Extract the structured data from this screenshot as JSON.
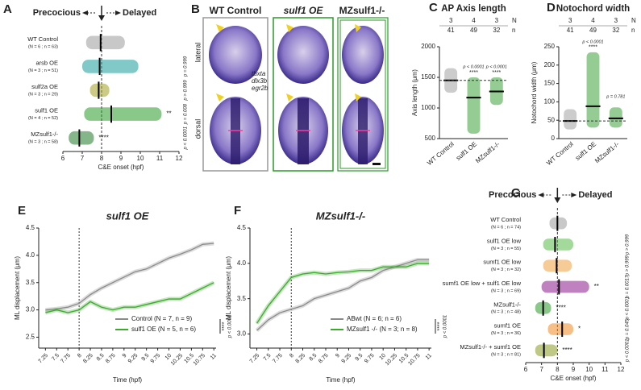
{
  "panels": [
    "A",
    "B",
    "C",
    "D",
    "E",
    "F",
    "G"
  ],
  "panel_b": {
    "titles": [
      "WT Control",
      "sulf1 OE",
      "MZsulf1-/-"
    ],
    "views": [
      "lateral",
      "dorsal"
    ],
    "markers": [
      "tbxta",
      "dlx3b",
      "egr2b"
    ]
  },
  "chart_data": [
    {
      "type": "strip",
      "orientation": "horizontal",
      "left_label": "Precocious",
      "right_label": "Delayed",
      "left_color": "#1e9a5a",
      "right_color": "#e020d0",
      "categories": [
        "WT Control",
        "arsb OE",
        "sulf2a OE",
        "sulf1 OE",
        "MZsulf1-/-"
      ],
      "sublabels": [
        "(N = 6 ; n = 63)",
        "(N = 3 ; n = 51)",
        "(N = 3 ; n = 29)",
        "(N = 4 ; n = 52)",
        "(N = 3 ; n = 58)"
      ],
      "colors": [
        "#9a9a9a",
        "#1a9a9a",
        "#a0a020",
        "#2a9a2a",
        "#1f7a2a"
      ],
      "values": [
        7.95,
        7.9,
        7.85,
        8.5,
        6.85
      ],
      "spread": [
        [
          7.2,
          9.2
        ],
        [
          7.0,
          9.9
        ],
        [
          7.4,
          8.4
        ],
        [
          7.1,
          11.1
        ],
        [
          6.3,
          7.6
        ]
      ],
      "pvalues": [
        null,
        "p = 0.999",
        "p > 0.999",
        "p = 0.008",
        "p < 0.0001"
      ],
      "stars": [
        null,
        null,
        null,
        "**",
        "****"
      ],
      "ref_line": 8,
      "xlim": [
        6,
        12
      ],
      "xticks": [
        6,
        7,
        8,
        9,
        10,
        11,
        12
      ],
      "xlabel": "C&E onset (hpf)"
    },
    {
      "type": "strip",
      "orientation": "vertical",
      "title": "AP Axis length",
      "N": [
        "3",
        "4",
        "3"
      ],
      "N_label": "N",
      "n": [
        "41",
        "49",
        "32"
      ],
      "n_label": "n",
      "categories": [
        "WT Control",
        "sulf1 OE",
        "MZsulf1-/-"
      ],
      "colors": [
        "#9a9a9a",
        "#2a9a2a",
        "#2a9a2a"
      ],
      "values": [
        1450,
        1170,
        1270
      ],
      "spread": [
        [
          1250,
          1650
        ],
        [
          580,
          1500
        ],
        [
          1050,
          1500
        ]
      ],
      "pvalues": [
        null,
        "p < 0.0001",
        "p < 0.0001"
      ],
      "stars": [
        null,
        "****",
        "****"
      ],
      "ref_line": 1450,
      "ylim": [
        500,
        2000
      ],
      "yticks": [
        500,
        1000,
        1500,
        2000
      ],
      "ylabel": "Axis length (μm)"
    },
    {
      "type": "strip",
      "orientation": "vertical",
      "title": "Notochord width",
      "N": [
        "3",
        "4",
        "3"
      ],
      "N_label": "N",
      "n": [
        "41",
        "49",
        "32"
      ],
      "n_label": "n",
      "categories": [
        "WT Control",
        "sulf1 OE",
        "MZsulf1-/-"
      ],
      "colors": [
        "#9a9a9a",
        "#2a9a2a",
        "#2a9a2a"
      ],
      "values": [
        48,
        88,
        55
      ],
      "spread": [
        [
          25,
          80
        ],
        [
          30,
          235
        ],
        [
          30,
          85
        ]
      ],
      "pvalues": [
        null,
        "p < 0.0001",
        "p = 0.781"
      ],
      "stars": [
        null,
        "****",
        null
      ],
      "ref_line": 48,
      "ylim": [
        0,
        250
      ],
      "yticks": [
        0,
        50,
        100,
        150,
        200,
        250
      ],
      "ylabel": "Notochord width (μm)"
    },
    {
      "type": "line",
      "title": "sulf1 OE",
      "title_color": "#1e9a3a",
      "x": [
        7.25,
        7.5,
        7.75,
        8,
        8.25,
        8.5,
        8.75,
        9,
        9.25,
        9.5,
        9.75,
        10,
        10.25,
        10.5,
        10.75,
        11
      ],
      "series": [
        {
          "name": "Control (N = 7, n = 9)",
          "color": "#8a8a8a",
          "values": [
            3.0,
            3.02,
            3.05,
            3.12,
            3.28,
            3.4,
            3.5,
            3.6,
            3.7,
            3.75,
            3.85,
            3.95,
            4.02,
            4.1,
            4.2,
            4.22
          ]
        },
        {
          "name": "sulf1 OE (N = 5, n = 6)",
          "color": "#3aaa2a",
          "values": [
            2.95,
            3.0,
            2.95,
            3.0,
            3.15,
            3.05,
            3.0,
            3.05,
            3.05,
            3.1,
            3.15,
            3.2,
            3.2,
            3.3,
            3.4,
            3.5
          ]
        }
      ],
      "stars": "****",
      "pvalue": "p < 0.0001",
      "ref_line": 8,
      "xlim": [
        7.1,
        11.05
      ],
      "xticks": [
        7.25,
        7.5,
        7.75,
        8,
        8.25,
        8.5,
        8.75,
        9,
        9.25,
        9.5,
        9.75,
        10,
        10.25,
        10.5,
        10.75,
        11
      ],
      "ylim": [
        2.3,
        4.5
      ],
      "yticks": [
        2.5,
        {
          "value": 3,
          "label": "3.0"
        },
        3.5,
        {
          "value": 4,
          "label": "4.0"
        },
        4.5
      ],
      "xlabel": "Time (hpf)",
      "ylabel": "ML displacement (μm)"
    },
    {
      "type": "line",
      "title": "MZsulf1-/-",
      "title_color": "#1e9a3a",
      "x": [
        7.25,
        7.5,
        7.75,
        8,
        8.25,
        8.5,
        8.75,
        9,
        9.25,
        9.5,
        9.75,
        10,
        10.25,
        10.5,
        10.75,
        11
      ],
      "series": [
        {
          "name": "ABwt (N = 6; n = 6)",
          "color": "#8a8a8a",
          "values": [
            3.05,
            3.2,
            3.3,
            3.35,
            3.4,
            3.5,
            3.55,
            3.6,
            3.65,
            3.75,
            3.8,
            3.9,
            3.95,
            4.0,
            4.05,
            4.05
          ]
        },
        {
          "name": "MZsulf1 -/- (N = 3; n = 8)",
          "color": "#3aaa2a",
          "values": [
            3.15,
            3.4,
            3.6,
            3.8,
            3.85,
            3.87,
            3.85,
            3.87,
            3.88,
            3.9,
            3.9,
            3.95,
            3.95,
            3.95,
            4.0,
            4.0
          ]
        }
      ],
      "stars": "****",
      "pvalue": "p < 0.0001",
      "ref_line": 8,
      "xlim": [
        7.1,
        11.05
      ],
      "xticks": [
        7.25,
        7.5,
        7.75,
        8,
        8.25,
        8.5,
        8.75,
        9,
        9.25,
        9.5,
        9.75,
        10,
        10.25,
        10.5,
        10.75,
        11
      ],
      "ylim": [
        2.8,
        4.5
      ],
      "yticks": [
        {
          "value": 3,
          "label": "3.0"
        },
        3.5,
        {
          "value": 4,
          "label": "4.0"
        },
        4.5
      ],
      "xlabel": "Time (hpf)",
      "ylabel": "ML displacement (μm)"
    },
    {
      "type": "strip",
      "orientation": "horizontal",
      "left_label": "Precocious",
      "right_label": "Delayed",
      "left_color": "#1e9a5a",
      "right_color": "#e020d0",
      "categories": [
        "WT Control",
        "sulf1 OE low",
        "sumf1 OE low",
        "sumf1 OE low + sulf1 OE low",
        "MZsulf1-/-",
        "sumf1 OE",
        "MZsulf1-/- + sumf1 OE"
      ],
      "sublabels": [
        "(N = 6 ; n = 74)",
        "(N = 3 ; n = 55)",
        "(N = 3 ; n = 32)",
        "(N = 3 ; n = 69)",
        "(N = 3 ; n = 48)",
        "(N = 3 ; n = 36)",
        "(N = 3 ; n = 81)"
      ],
      "colors": [
        "#9a9a9a",
        "#5aba4a",
        "#f0a040",
        "#8a1a8a",
        "#2a9a2a",
        "#f08a20",
        "#8a9a20"
      ],
      "values": [
        8.0,
        7.85,
        7.95,
        8.1,
        7.1,
        8.3,
        7.15
      ],
      "spread": [
        [
          7.5,
          8.6
        ],
        [
          7.1,
          9.0
        ],
        [
          7.1,
          8.9
        ],
        [
          7.0,
          10.0
        ],
        [
          6.6,
          7.6
        ],
        [
          7.4,
          9.0
        ],
        [
          6.6,
          8.0
        ]
      ],
      "pvalues": [
        null,
        "p > 0.999",
        "p > 0.999",
        "p = 0.0017",
        "p < 0.0001",
        "p = 0.045",
        "p < 0.0001"
      ],
      "stars": [
        null,
        null,
        null,
        "**",
        "****",
        "*",
        "****"
      ],
      "ref_line": 8,
      "xlim": [
        6,
        12
      ],
      "xticks": [
        6,
        7,
        8,
        9,
        10,
        11,
        12
      ],
      "xlabel": "C&E onset (hpf)"
    }
  ]
}
